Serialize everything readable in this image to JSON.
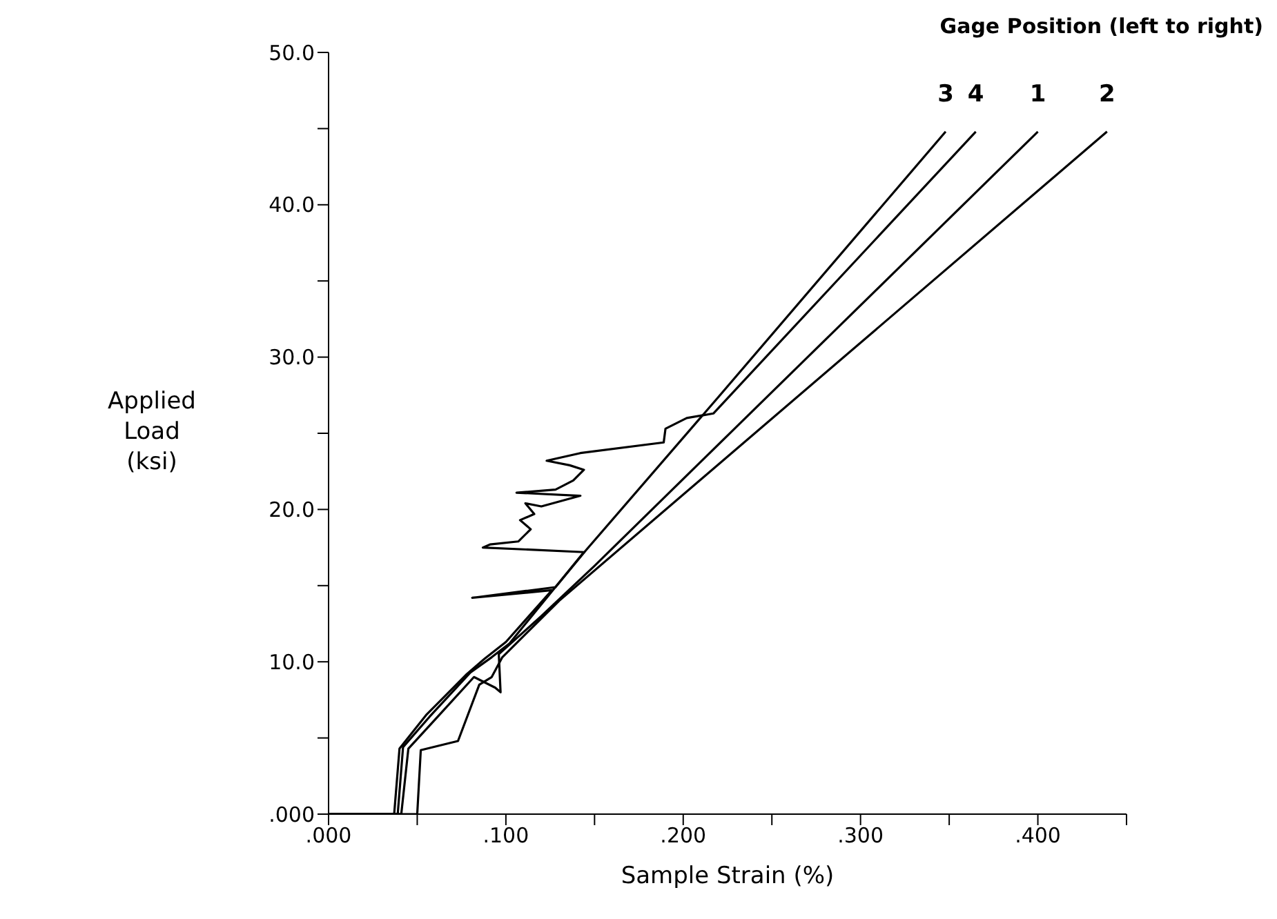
{
  "chart_data": {
    "type": "line",
    "xlabel": "Sample Strain (%)",
    "ylabel": "Applied Load (ksi)",
    "legend_title": "Gage Position (left to right)",
    "legend": false,
    "grid": false,
    "marker": "none",
    "line_style": "solid",
    "xlim": [
      0,
      0.45
    ],
    "ylim": [
      0,
      50
    ],
    "xticks": [
      {
        "value": 0,
        "label": ".000"
      },
      {
        "value": 0.05,
        "label": null
      },
      {
        "value": 0.1,
        "label": ".100"
      },
      {
        "value": 0.15,
        "label": null
      },
      {
        "value": 0.2,
        "label": ".200"
      },
      {
        "value": 0.25,
        "label": null
      },
      {
        "value": 0.3,
        "label": ".300"
      },
      {
        "value": 0.35,
        "label": null
      },
      {
        "value": 0.4,
        "label": ".400"
      },
      {
        "value": 0.45,
        "label": null
      }
    ],
    "yticks": [
      {
        "value": 0,
        "label": ".000"
      },
      {
        "value": 5,
        "label": null
      },
      {
        "value": 10,
        "label": "10.0"
      },
      {
        "value": 15,
        "label": null
      },
      {
        "value": 20,
        "label": "20.0"
      },
      {
        "value": 25,
        "label": null
      },
      {
        "value": 30,
        "label": "30.0"
      },
      {
        "value": 35,
        "label": null
      },
      {
        "value": 40,
        "label": "40.0"
      },
      {
        "value": 45,
        "label": null
      },
      {
        "value": 50,
        "label": "50.0"
      }
    ],
    "series": [
      {
        "name": "3",
        "color": "#000000",
        "x": [
          0,
          0.037,
          0.04,
          0.055,
          0.078,
          0.088,
          0.1,
          0.126,
          0.081,
          0.128,
          0.145,
          0.22,
          0.348
        ],
        "values": [
          0,
          0,
          4.3,
          6.5,
          9.2,
          10.2,
          11.3,
          14.7,
          14.2,
          14.9,
          17.3,
          27.4,
          44.8
        ]
      },
      {
        "name": "4",
        "color": "#000000",
        "x": [
          0,
          0.039,
          0.042,
          0.057,
          0.08,
          0.092,
          0.102,
          0.144,
          0.087,
          0.091,
          0.107,
          0.114,
          0.108,
          0.116,
          0.111,
          0.12,
          0.142,
          0.106,
          0.128,
          0.138,
          0.144,
          0.136,
          0.123,
          0.142,
          0.189,
          0.19,
          0.202,
          0.217,
          0.365
        ],
        "values": [
          0,
          0,
          4.4,
          6.4,
          9.3,
          10.3,
          11.2,
          17.2,
          17.5,
          17.7,
          17.9,
          18.7,
          19.3,
          19.7,
          20.4,
          20.2,
          20.9,
          21.1,
          21.3,
          21.9,
          22.6,
          22.9,
          23.2,
          23.7,
          24.4,
          25.3,
          26.0,
          26.3,
          44.8
        ]
      },
      {
        "name": "1",
        "color": "#000000",
        "x": [
          0,
          0.041,
          0.045,
          0.06,
          0.082,
          0.094,
          0.097,
          0.096,
          0.12,
          0.15,
          0.4
        ],
        "values": [
          0,
          0,
          4.3,
          6.2,
          9.0,
          8.3,
          8.0,
          10.5,
          13.0,
          16.3,
          44.8
        ]
      },
      {
        "name": "2",
        "color": "#000000",
        "x": [
          0,
          0.05,
          0.052,
          0.073,
          0.085,
          0.092,
          0.098,
          0.13,
          0.439
        ],
        "values": [
          0,
          0,
          4.2,
          4.8,
          8.5,
          9.0,
          10.3,
          14.0,
          44.8
        ]
      }
    ]
  }
}
